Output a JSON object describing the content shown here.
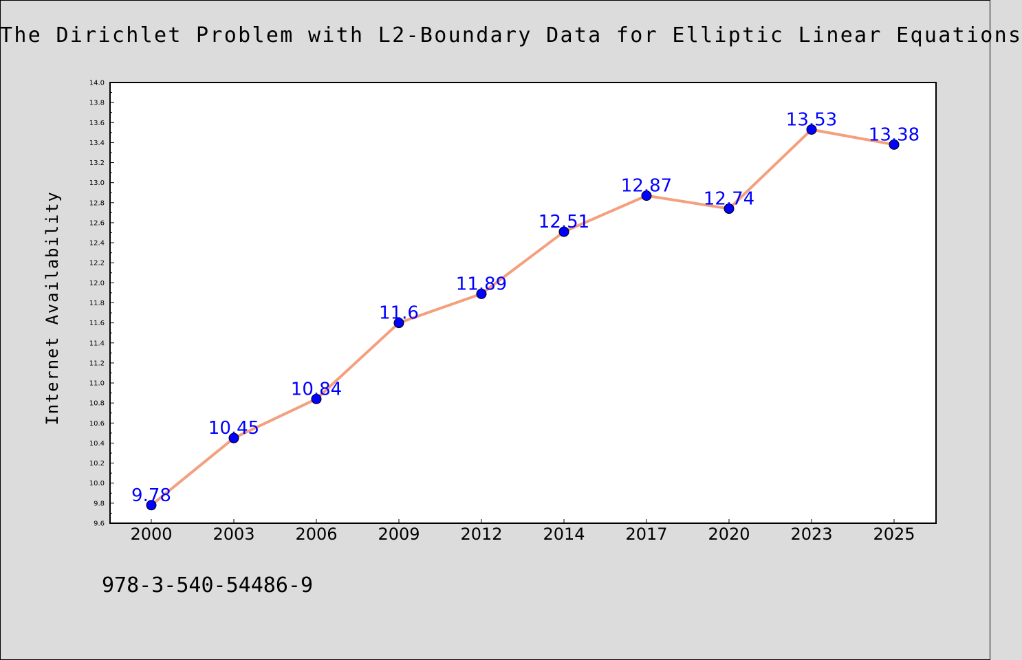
{
  "chart_data": {
    "type": "line",
    "title": "The Dirichlet Problem with L2-Boundary Data for Elliptic Linear Equations",
    "xlabel": "",
    "ylabel": "Internet Availability",
    "categories": [
      "2000",
      "2003",
      "2006",
      "2009",
      "2012",
      "2014",
      "2017",
      "2020",
      "2023",
      "2025"
    ],
    "series": [
      {
        "values": [
          9.78,
          10.45,
          10.84,
          11.6,
          11.89,
          12.51,
          12.87,
          12.74,
          13.53,
          13.38
        ]
      }
    ],
    "data_labels": [
      "9.78",
      "10.45",
      "10.84",
      "11.6",
      "11.89",
      "12.51",
      "12.87",
      "12.74",
      "13.53",
      "13.38"
    ],
    "ylim": [
      9.6,
      14.0
    ],
    "y_ticks": [
      "9.6",
      "9.8",
      "10.0",
      "10.2",
      "10.4",
      "10.6",
      "10.8",
      "11.0",
      "11.2",
      "11.4",
      "11.6",
      "11.8",
      "12.0",
      "12.2",
      "12.4",
      "12.6",
      "12.8",
      "13.0",
      "13.2",
      "13.4",
      "13.6",
      "13.8",
      "14.0"
    ],
    "grid": false,
    "legend": "none",
    "colors": {
      "line": "#f4a07e",
      "marker": "#0000ff",
      "label": "#0000ff",
      "background": "#dcdcdc"
    }
  },
  "footer_text": "978-3-540-54486-9"
}
